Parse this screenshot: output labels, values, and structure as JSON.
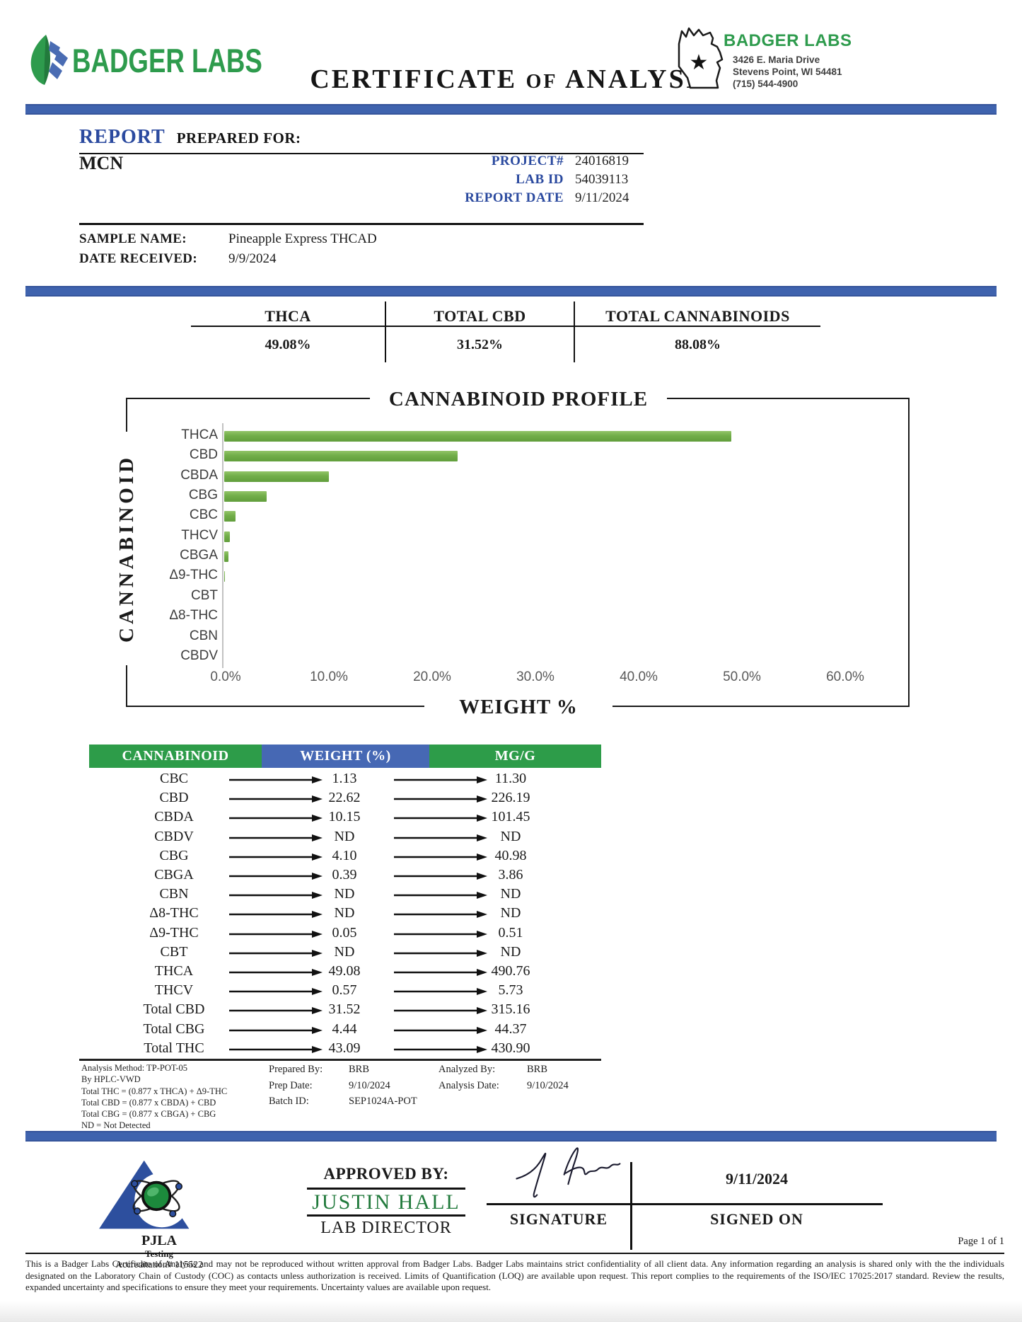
{
  "header": {
    "logo_text": "BADGER LABS",
    "title_parts": [
      "CERTIFICATE",
      "OF",
      "ANALYSIS"
    ],
    "lab_name": "BADGER LABS",
    "address_line1": "3426 E. Maria Drive",
    "address_line2": "Stevens Point, WI 54481",
    "phone": "(715) 544-4900"
  },
  "report": {
    "heading_primary": "REPORT",
    "heading_secondary": "PREPARED FOR:",
    "client_name": "MCN",
    "fields": [
      {
        "label": "PROJECT#",
        "value": "24016819"
      },
      {
        "label": "LAB ID",
        "value": "54039113"
      },
      {
        "label": "REPORT DATE",
        "value": "9/11/2024"
      }
    ],
    "sample_name_label": "SAMPLE NAME:",
    "sample_name_value": "Pineapple Express THCAD",
    "date_received_label": "DATE RECEIVED:",
    "date_received_value": "9/9/2024"
  },
  "summary": {
    "columns": [
      {
        "label": "THCA",
        "value": "49.08%"
      },
      {
        "label": "TOTAL CBD",
        "value": "31.52%"
      },
      {
        "label": "TOTAL CANNABINOIDS",
        "value": "88.08%"
      }
    ]
  },
  "chart_data": {
    "type": "bar",
    "orientation": "horizontal",
    "title": "CANNABINOID PROFILE",
    "xlabel": "WEIGHT %",
    "ylabel": "CANNABINOID",
    "categories": [
      "THCA",
      "CBD",
      "CBDA",
      "CBG",
      "CBC",
      "THCV",
      "CBGA",
      "Δ9-THC",
      "CBT",
      "Δ8-THC",
      "CBN",
      "CBDV"
    ],
    "values": [
      49.08,
      22.62,
      10.15,
      4.1,
      1.13,
      0.57,
      0.39,
      0.05,
      0,
      0,
      0,
      0
    ],
    "xlim": [
      0,
      60
    ],
    "x_ticks": [
      "0.0%",
      "10.0%",
      "20.0%",
      "30.0%",
      "40.0%",
      "50.0%",
      "60.0%"
    ],
    "bar_color": "#71ad49",
    "grid": false,
    "legend": false
  },
  "results_table": {
    "headers": [
      "CANNABINOID",
      "WEIGHT (%)",
      "MG/G"
    ],
    "rows": [
      {
        "name": "CBC",
        "weight": "1.13",
        "mgg": "11.30"
      },
      {
        "name": "CBD",
        "weight": "22.62",
        "mgg": "226.19"
      },
      {
        "name": "CBDA",
        "weight": "10.15",
        "mgg": "101.45"
      },
      {
        "name": "CBDV",
        "weight": "ND",
        "mgg": "ND"
      },
      {
        "name": "CBG",
        "weight": "4.10",
        "mgg": "40.98"
      },
      {
        "name": "CBGA",
        "weight": "0.39",
        "mgg": "3.86"
      },
      {
        "name": "CBN",
        "weight": "ND",
        "mgg": "ND"
      },
      {
        "name": "Δ8-THC",
        "weight": "ND",
        "mgg": "ND"
      },
      {
        "name": "Δ9-THC",
        "weight": "0.05",
        "mgg": "0.51"
      },
      {
        "name": "CBT",
        "weight": "ND",
        "mgg": "ND"
      },
      {
        "name": "THCA",
        "weight": "49.08",
        "mgg": "490.76"
      },
      {
        "name": "THCV",
        "weight": "0.57",
        "mgg": "5.73"
      },
      {
        "name": "Total CBD",
        "weight": "31.52",
        "mgg": "315.16"
      },
      {
        "name": "Total CBG",
        "weight": "4.44",
        "mgg": "44.37"
      },
      {
        "name": "Total THC",
        "weight": "43.09",
        "mgg": "430.90"
      }
    ]
  },
  "footnotes": {
    "method_lines": [
      "Analysis Method: TP-POT-05",
      "By HPLC-VWD",
      "Total THC = (0.877 x  THCA) + Δ9-THC",
      "Total CBD = (0.877 x  CBDA) + CBD",
      "Total CBG = (0.877 x  CBGA) + CBG",
      "ND = Not Detected"
    ],
    "prep_block": [
      {
        "label": "Prepared By:",
        "value": "BRB"
      },
      {
        "label": "Prep Date:",
        "value": "9/10/2024"
      },
      {
        "label": "Batch ID:",
        "value": "SEP1024A-POT"
      }
    ],
    "analysis_block": [
      {
        "label": "Analyzed By:",
        "value": "BRB"
      },
      {
        "label": "Analysis Date:",
        "value": "9/10/2024"
      }
    ]
  },
  "approval": {
    "pjla_name": "PJLA",
    "pjla_sub": "Testing",
    "accreditation": "Accreditation# 115522",
    "approved_by_label": "APPROVED BY:",
    "approver_name": "JUSTIN HALL",
    "approver_title": "LAB DIRECTOR",
    "signature_label": "SIGNATURE",
    "signed_on_date": "9/11/2024",
    "signed_on_label": "SIGNED ON",
    "page_indicator": "Page 1 of 1"
  },
  "footer": {
    "disclaimer": "This is a Badger Labs Certificate of Analysis and may not be reproduced without written approval from Badger Labs. Badger Labs maintains strict confidentiality of all client data. Any information regarding an analysis is shared only with the the individuals designated on the Laboratory Chain of Custody (COC) as contacts unless authorization is received. Limits of Quantification (LOQ) are available upon request. This report complies to the requirements of the ISO/IEC 17025:2017 standard. Review the results, expanded uncertainty and specifications to ensure they meet your requirements. Uncertainty values are available upon request."
  },
  "colors": {
    "accent_blue": "#3f63ae",
    "header_green": "#2d9c49",
    "table_header_blue": "#4668b4",
    "label_blue": "#2b4a9f",
    "bar_green": "#71ad49",
    "approver_green": "#217a3c"
  }
}
